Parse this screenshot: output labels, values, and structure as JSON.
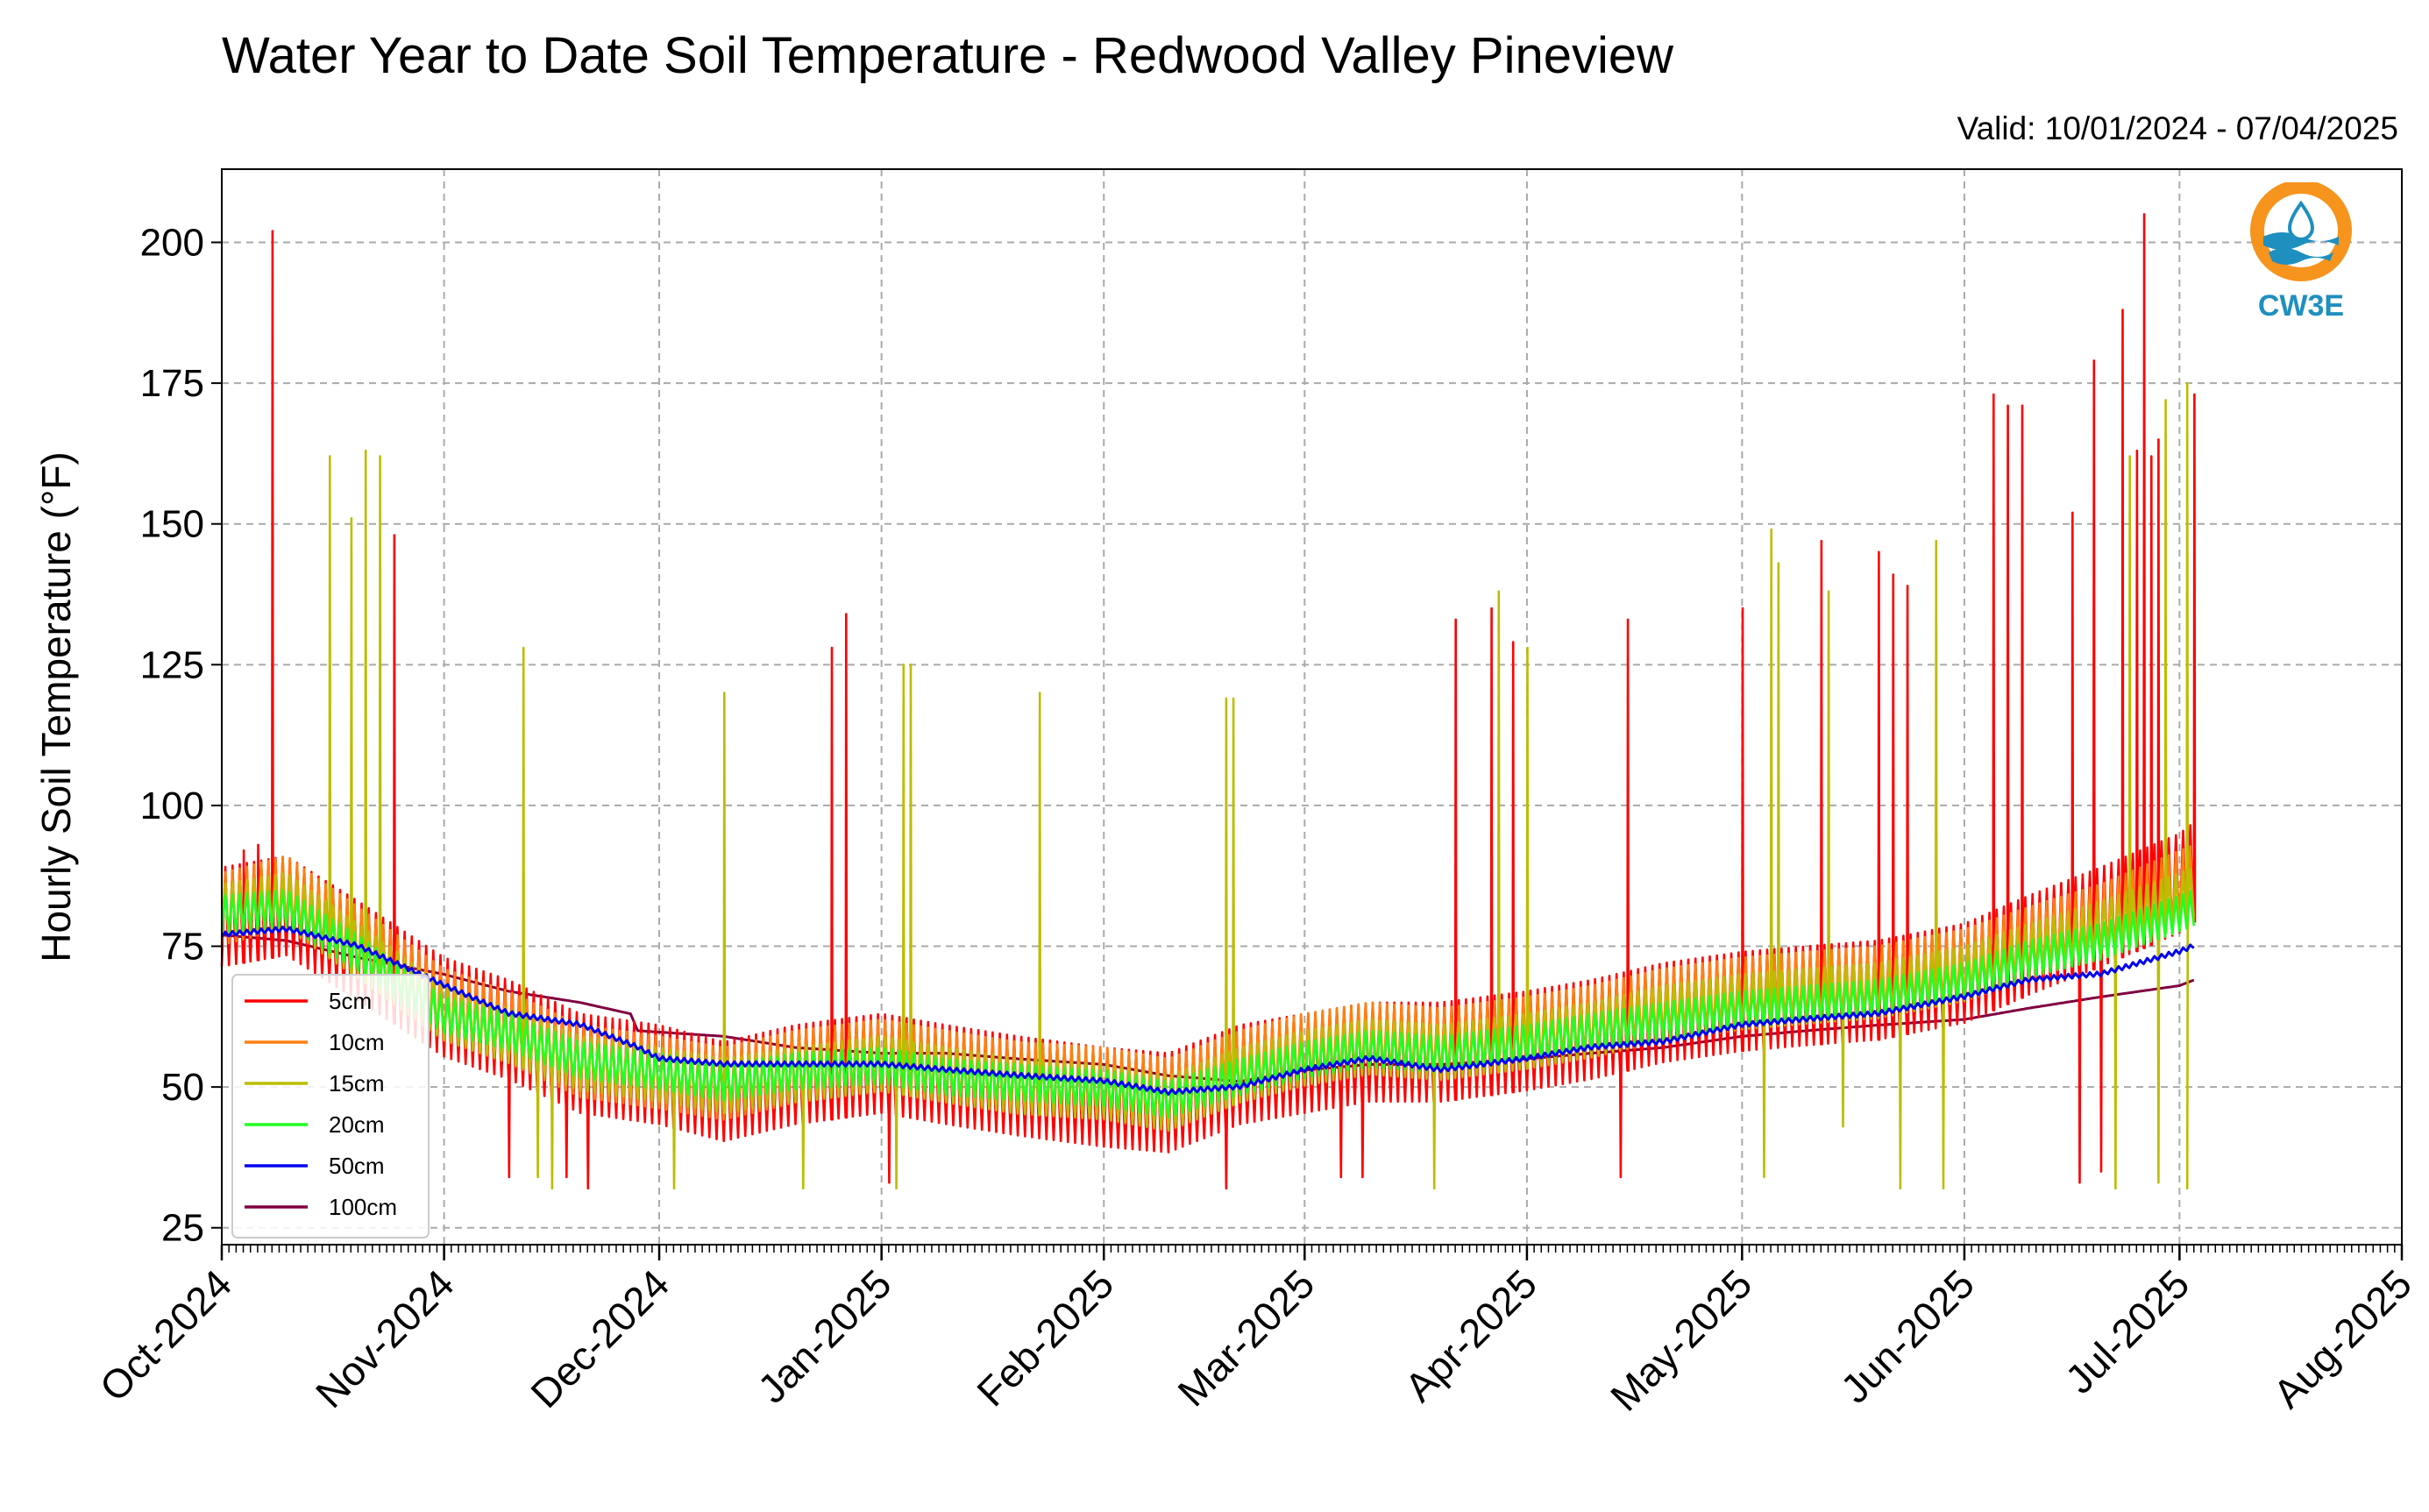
{
  "title": "Water Year to Date Soil Temperature - Redwood Valley Pineview",
  "valid_label": "Valid: 10/01/2024 - 07/04/2025",
  "logo_text": "CW3E",
  "colors": {
    "5cm": "#ff0000",
    "10cm": "#ff7f0e",
    "15cm": "#bcbd00",
    "20cm": "#22ff22",
    "50cm": "#0000ee",
    "100cm": "#800040",
    "logo_orange": "#f7941d",
    "logo_teal": "#1f8fbf"
  },
  "chart_data": {
    "type": "line",
    "title": "Water Year to Date Soil Temperature - Redwood Valley Pineview",
    "ylabel": "Hourly Soil Temperature (°F)",
    "xlabel": "",
    "xlim": [
      "2024-10-01",
      "2025-08-01"
    ],
    "ylim": [
      22,
      213
    ],
    "yticks": [
      25,
      50,
      75,
      100,
      125,
      150,
      175,
      200
    ],
    "xticks": [
      "2024-10-01",
      "2024-11-01",
      "2024-12-01",
      "2025-01-01",
      "2025-02-01",
      "2025-03-01",
      "2025-04-01",
      "2025-05-01",
      "2025-06-01",
      "2025-07-01",
      "2025-08-01"
    ],
    "xtick_labels": [
      "Oct-2024",
      "Nov-2024",
      "Dec-2024",
      "Jan-2025",
      "Feb-2025",
      "Mar-2025",
      "Apr-2025",
      "May-2025",
      "Jun-2025",
      "Jul-2025",
      "Aug-2025"
    ],
    "grid": true,
    "legend_position": "lower-left",
    "series": [
      {
        "name": "5cm",
        "color": "#ff0000",
        "baseline": [
          [
            "2024-10-01",
            78
          ],
          [
            "2024-10-10",
            80
          ],
          [
            "2024-10-20",
            72
          ],
          [
            "2024-11-01",
            62
          ],
          [
            "2024-11-10",
            58
          ],
          [
            "2024-11-20",
            52
          ],
          [
            "2024-12-01",
            50
          ],
          [
            "2024-12-10",
            47
          ],
          [
            "2024-12-20",
            50
          ],
          [
            "2025-01-01",
            52
          ],
          [
            "2025-01-10",
            50
          ],
          [
            "2025-01-20",
            48
          ],
          [
            "2025-02-01",
            46
          ],
          [
            "2025-02-10",
            45
          ],
          [
            "2025-02-20",
            50
          ],
          [
            "2025-03-01",
            52
          ],
          [
            "2025-03-10",
            54
          ],
          [
            "2025-03-20",
            54
          ],
          [
            "2025-04-01",
            56
          ],
          [
            "2025-04-10",
            58
          ],
          [
            "2025-04-20",
            61
          ],
          [
            "2025-05-01",
            63
          ],
          [
            "2025-05-10",
            64
          ],
          [
            "2025-05-20",
            65
          ],
          [
            "2025-06-01",
            68
          ],
          [
            "2025-06-10",
            73
          ],
          [
            "2025-06-20",
            78
          ],
          [
            "2025-07-01",
            84
          ],
          [
            "2025-07-03",
            86
          ]
        ],
        "amplitude": 11,
        "spikes": [
          [
            "2024-10-08",
            202
          ],
          [
            "2024-10-06",
            93
          ],
          [
            "2024-10-04",
            92
          ],
          [
            "2024-10-25",
            148
          ],
          [
            "2024-11-10",
            34
          ],
          [
            "2024-11-18",
            34
          ],
          [
            "2024-11-21",
            32
          ],
          [
            "2024-12-25",
            128
          ],
          [
            "2024-12-27",
            134
          ],
          [
            "2025-01-02",
            33
          ],
          [
            "2025-02-18",
            32
          ],
          [
            "2025-03-06",
            34
          ],
          [
            "2025-03-09",
            34
          ],
          [
            "2025-03-22",
            133
          ],
          [
            "2025-03-27",
            135
          ],
          [
            "2025-03-30",
            129
          ],
          [
            "2025-04-14",
            34
          ],
          [
            "2025-04-15",
            133
          ],
          [
            "2025-05-01",
            135
          ],
          [
            "2025-05-12",
            147
          ],
          [
            "2025-05-20",
            145
          ],
          [
            "2025-05-22",
            141
          ],
          [
            "2025-05-24",
            139
          ],
          [
            "2025-06-05",
            173
          ],
          [
            "2025-06-07",
            171
          ],
          [
            "2025-06-09",
            171
          ],
          [
            "2025-06-16",
            152
          ],
          [
            "2025-06-17",
            33
          ],
          [
            "2025-06-19",
            179
          ],
          [
            "2025-06-20",
            35
          ],
          [
            "2025-06-23",
            188
          ],
          [
            "2025-06-25",
            163
          ],
          [
            "2025-06-26",
            205
          ],
          [
            "2025-06-27",
            162
          ],
          [
            "2025-06-28",
            165
          ],
          [
            "2025-07-02",
            101
          ],
          [
            "2025-07-03",
            173
          ],
          [
            "2025-07-03",
            166
          ]
        ]
      },
      {
        "name": "10cm",
        "color": "#ff7f0e",
        "baseline": [
          [
            "2024-10-01",
            80
          ],
          [
            "2024-10-10",
            83
          ],
          [
            "2024-10-20",
            74
          ],
          [
            "2024-11-01",
            63
          ],
          [
            "2024-11-10",
            59
          ],
          [
            "2024-11-20",
            53
          ],
          [
            "2024-12-01",
            51
          ],
          [
            "2024-12-10",
            49
          ],
          [
            "2024-12-20",
            52
          ],
          [
            "2025-01-01",
            54
          ],
          [
            "2025-01-10",
            52
          ],
          [
            "2025-01-20",
            50
          ],
          [
            "2025-02-01",
            49
          ],
          [
            "2025-02-10",
            47
          ],
          [
            "2025-02-20",
            52
          ],
          [
            "2025-03-01",
            55
          ],
          [
            "2025-03-10",
            57
          ],
          [
            "2025-03-20",
            56
          ],
          [
            "2025-04-01",
            58
          ],
          [
            "2025-04-10",
            60
          ],
          [
            "2025-04-20",
            63
          ],
          [
            "2025-05-01",
            65
          ],
          [
            "2025-05-10",
            66
          ],
          [
            "2025-05-20",
            67
          ],
          [
            "2025-06-01",
            70
          ],
          [
            "2025-06-10",
            74
          ],
          [
            "2025-06-20",
            78
          ],
          [
            "2025-07-01",
            84
          ],
          [
            "2025-07-03",
            85
          ]
        ],
        "amplitude": 8,
        "spikes": []
      },
      {
        "name": "15cm",
        "color": "#bcbd00",
        "baseline": [
          [
            "2024-10-01",
            80
          ],
          [
            "2024-10-10",
            82
          ],
          [
            "2024-10-20",
            73
          ],
          [
            "2024-11-01",
            62
          ],
          [
            "2024-11-10",
            58
          ],
          [
            "2024-11-20",
            53
          ],
          [
            "2024-12-01",
            51
          ],
          [
            "2024-12-10",
            49
          ],
          [
            "2024-12-20",
            51
          ],
          [
            "2025-01-01",
            53
          ],
          [
            "2025-01-10",
            51
          ],
          [
            "2025-01-20",
            49
          ],
          [
            "2025-02-01",
            48
          ],
          [
            "2025-02-10",
            46
          ],
          [
            "2025-02-20",
            51
          ],
          [
            "2025-03-01",
            54
          ],
          [
            "2025-03-10",
            56
          ],
          [
            "2025-03-20",
            55
          ],
          [
            "2025-04-01",
            57
          ],
          [
            "2025-04-10",
            59
          ],
          [
            "2025-04-20",
            62
          ],
          [
            "2025-05-01",
            64
          ],
          [
            "2025-05-10",
            65
          ],
          [
            "2025-05-20",
            66
          ],
          [
            "2025-06-01",
            69
          ],
          [
            "2025-06-10",
            73
          ],
          [
            "2025-06-20",
            77
          ],
          [
            "2025-07-01",
            82
          ],
          [
            "2025-07-03",
            83
          ]
        ],
        "amplitude": 6,
        "spikes": [
          [
            "2024-10-16",
            162
          ],
          [
            "2024-10-19",
            151
          ],
          [
            "2024-10-21",
            163
          ],
          [
            "2024-10-23",
            162
          ],
          [
            "2024-11-12",
            128
          ],
          [
            "2024-11-14",
            34
          ],
          [
            "2024-11-16",
            32
          ],
          [
            "2024-12-03",
            32
          ],
          [
            "2024-12-10",
            120
          ],
          [
            "2024-12-21",
            32
          ],
          [
            "2025-01-03",
            32
          ],
          [
            "2025-01-04",
            125
          ],
          [
            "2025-01-05",
            125
          ],
          [
            "2025-01-23",
            120
          ],
          [
            "2025-02-18",
            119
          ],
          [
            "2025-02-19",
            119
          ],
          [
            "2025-03-19",
            32
          ],
          [
            "2025-03-28",
            138
          ],
          [
            "2025-04-01",
            128
          ],
          [
            "2025-05-04",
            34
          ],
          [
            "2025-05-05",
            149
          ],
          [
            "2025-05-06",
            143
          ],
          [
            "2025-05-13",
            138
          ],
          [
            "2025-05-15",
            43
          ],
          [
            "2025-05-23",
            32
          ],
          [
            "2025-05-28",
            147
          ],
          [
            "2025-05-29",
            32
          ],
          [
            "2025-06-22",
            32
          ],
          [
            "2025-06-24",
            162
          ],
          [
            "2025-06-28",
            33
          ],
          [
            "2025-06-29",
            172
          ],
          [
            "2025-07-02",
            175
          ],
          [
            "2025-07-02",
            32
          ]
        ]
      },
      {
        "name": "20cm",
        "color": "#22ff22",
        "baseline": [
          [
            "2024-10-01",
            80
          ],
          [
            "2024-10-10",
            81
          ],
          [
            "2024-10-20",
            73
          ],
          [
            "2024-11-01",
            62
          ],
          [
            "2024-11-10",
            59
          ],
          [
            "2024-11-20",
            54
          ],
          [
            "2024-12-01",
            52
          ],
          [
            "2024-12-10",
            50
          ],
          [
            "2024-12-20",
            52
          ],
          [
            "2025-01-01",
            53
          ],
          [
            "2025-01-10",
            51
          ],
          [
            "2025-01-20",
            50
          ],
          [
            "2025-02-01",
            49
          ],
          [
            "2025-02-10",
            47
          ],
          [
            "2025-02-20",
            51
          ],
          [
            "2025-03-01",
            54
          ],
          [
            "2025-03-10",
            56
          ],
          [
            "2025-03-20",
            55
          ],
          [
            "2025-04-01",
            57
          ],
          [
            "2025-04-10",
            59
          ],
          [
            "2025-04-20",
            61
          ],
          [
            "2025-05-01",
            63
          ],
          [
            "2025-05-10",
            64
          ],
          [
            "2025-05-20",
            65
          ],
          [
            "2025-06-01",
            68
          ],
          [
            "2025-06-10",
            72
          ],
          [
            "2025-06-20",
            75
          ],
          [
            "2025-07-01",
            80
          ],
          [
            "2025-07-03",
            81
          ]
        ],
        "amplitude": 4,
        "spikes": []
      },
      {
        "name": "50cm",
        "color": "#0000ee",
        "baseline": [
          [
            "2024-10-01",
            77
          ],
          [
            "2024-10-10",
            78
          ],
          [
            "2024-10-20",
            75
          ],
          [
            "2024-11-01",
            68
          ],
          [
            "2024-11-10",
            63
          ],
          [
            "2024-11-20",
            61
          ],
          [
            "2024-11-28",
            57
          ],
          [
            "2024-12-01",
            55
          ],
          [
            "2024-12-10",
            54
          ],
          [
            "2024-12-20",
            54
          ],
          [
            "2025-01-01",
            54
          ],
          [
            "2025-01-10",
            53
          ],
          [
            "2025-01-20",
            52
          ],
          [
            "2025-02-01",
            51
          ],
          [
            "2025-02-10",
            49
          ],
          [
            "2025-02-20",
            50
          ],
          [
            "2025-03-01",
            53
          ],
          [
            "2025-03-10",
            55
          ],
          [
            "2025-03-20",
            53
          ],
          [
            "2025-04-01",
            55
          ],
          [
            "2025-04-10",
            57
          ],
          [
            "2025-04-20",
            58
          ],
          [
            "2025-05-01",
            61
          ],
          [
            "2025-05-10",
            62
          ],
          [
            "2025-05-20",
            63
          ],
          [
            "2025-06-01",
            66
          ],
          [
            "2025-06-10",
            69
          ],
          [
            "2025-06-20",
            70
          ],
          [
            "2025-07-01",
            74
          ],
          [
            "2025-07-03",
            75
          ]
        ],
        "amplitude": 0.5,
        "spikes": []
      },
      {
        "name": "100cm",
        "color": "#800040",
        "baseline": [
          [
            "2024-10-01",
            77
          ],
          [
            "2024-10-10",
            76
          ],
          [
            "2024-10-20",
            73
          ],
          [
            "2024-11-01",
            70
          ],
          [
            "2024-11-10",
            67
          ],
          [
            "2024-11-20",
            65
          ],
          [
            "2024-11-27",
            63
          ],
          [
            "2024-11-28",
            60
          ],
          [
            "2024-12-10",
            59
          ],
          [
            "2024-12-20",
            57
          ],
          [
            "2025-01-01",
            56
          ],
          [
            "2025-01-10",
            56
          ],
          [
            "2025-01-20",
            55
          ],
          [
            "2025-02-01",
            54
          ],
          [
            "2025-02-10",
            52
          ],
          [
            "2025-02-20",
            51
          ],
          [
            "2025-03-01",
            53
          ],
          [
            "2025-03-10",
            54
          ],
          [
            "2025-03-20",
            54
          ],
          [
            "2025-04-01",
            55
          ],
          [
            "2025-04-10",
            56
          ],
          [
            "2025-04-20",
            57
          ],
          [
            "2025-05-01",
            59
          ],
          [
            "2025-05-10",
            60
          ],
          [
            "2025-05-20",
            61
          ],
          [
            "2025-06-01",
            62
          ],
          [
            "2025-06-10",
            64
          ],
          [
            "2025-06-20",
            66
          ],
          [
            "2025-07-01",
            68
          ],
          [
            "2025-07-03",
            69
          ]
        ],
        "amplitude": 0,
        "spikes": []
      }
    ]
  }
}
